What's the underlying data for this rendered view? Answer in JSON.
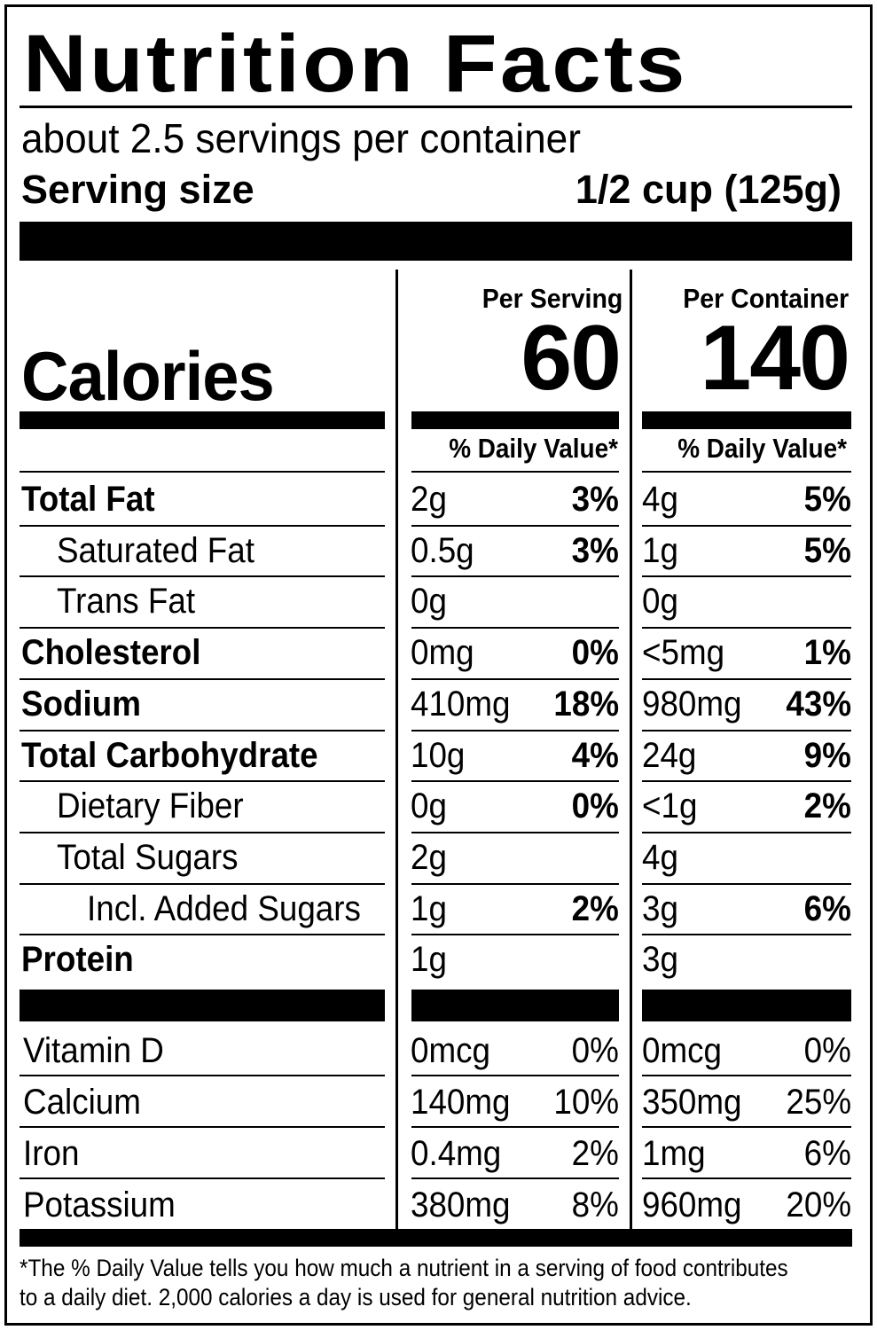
{
  "title": "Nutrition Facts",
  "servings_per_container": "about 2.5 servings per container",
  "serving_size_label": "Serving size",
  "serving_size_value": "1/2 cup (125g)",
  "col_per_serving": "Per Serving",
  "col_per_container": "Per Container",
  "calories_label": "Calories",
  "calories_per_serving": "60",
  "calories_per_container": "140",
  "dv_header": "% Daily Value*",
  "nutrients": [
    {
      "name": "Total Fat",
      "bold": true,
      "indent": 0,
      "s_amt": "2g",
      "s_pct": "3%",
      "c_amt": "4g",
      "c_pct": "5%"
    },
    {
      "name": "Saturated Fat",
      "bold": false,
      "indent": 1,
      "s_amt": "0.5g",
      "s_pct": "3%",
      "c_amt": "1g",
      "c_pct": "5%"
    },
    {
      "name": "Trans Fat",
      "bold": false,
      "indent": 1,
      "s_amt": "0g",
      "s_pct": "",
      "c_amt": "0g",
      "c_pct": ""
    },
    {
      "name": "Cholesterol",
      "bold": true,
      "indent": 0,
      "s_amt": "0mg",
      "s_pct": "0%",
      "c_amt": "<5mg",
      "c_pct": "1%"
    },
    {
      "name": "Sodium",
      "bold": true,
      "indent": 0,
      "s_amt": "410mg",
      "s_pct": "18%",
      "c_amt": "980mg",
      "c_pct": "43%"
    },
    {
      "name": "Total Carbohydrate",
      "bold": true,
      "indent": 0,
      "s_amt": "10g",
      "s_pct": "4%",
      "c_amt": "24g",
      "c_pct": "9%"
    },
    {
      "name": "Dietary Fiber",
      "bold": false,
      "indent": 1,
      "s_amt": "0g",
      "s_pct": "0%",
      "c_amt": "<1g",
      "c_pct": "2%"
    },
    {
      "name": "Total Sugars",
      "bold": false,
      "indent": 1,
      "s_amt": "2g",
      "s_pct": "",
      "c_amt": "4g",
      "c_pct": ""
    },
    {
      "name": "Incl. Added Sugars",
      "bold": false,
      "indent": 2,
      "s_amt": "1g",
      "s_pct": "2%",
      "c_amt": "3g",
      "c_pct": "6%"
    },
    {
      "name": "Protein",
      "bold": true,
      "indent": 0,
      "s_amt": "1g",
      "s_pct": "",
      "c_amt": "3g",
      "c_pct": ""
    }
  ],
  "vitamins": [
    {
      "name": "Vitamin D",
      "s_amt": "0mcg",
      "s_pct": "0%",
      "c_amt": "0mcg",
      "c_pct": "0%"
    },
    {
      "name": "Calcium",
      "s_amt": "140mg",
      "s_pct": "10%",
      "c_amt": "350mg",
      "c_pct": "25%"
    },
    {
      "name": "Iron",
      "s_amt": "0.4mg",
      "s_pct": "2%",
      "c_amt": "1mg",
      "c_pct": "6%"
    },
    {
      "name": "Potassium",
      "s_amt": "380mg",
      "s_pct": "8%",
      "c_amt": "960mg",
      "c_pct": "20%"
    }
  ],
  "footnote_line1": "*The % Daily Value tells you how much a nutrient in a serving of food contributes",
  "footnote_line2": "to a daily diet. 2,000 calories a day is used for general nutrition advice."
}
